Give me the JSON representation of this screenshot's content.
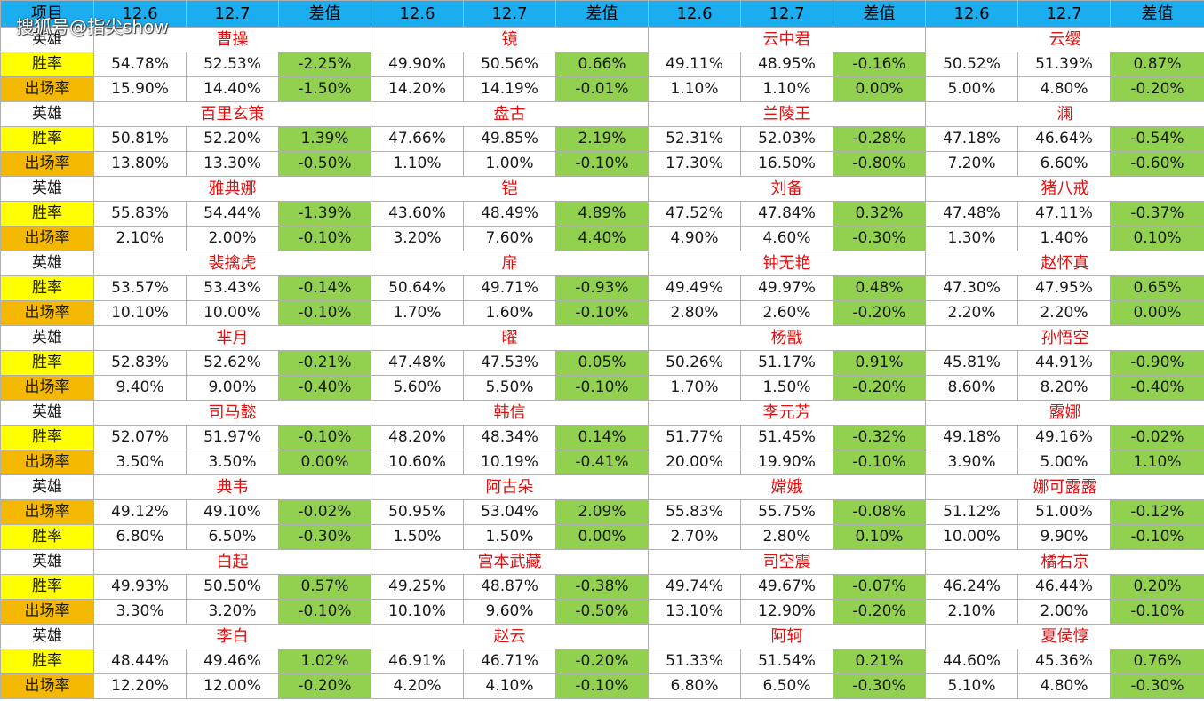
{
  "watermark": "搜狐号@指尖show",
  "header": {
    "corner": "项目",
    "cols": [
      "12.6",
      "12.7",
      "差值",
      "12.6",
      "12.7",
      "差值",
      "12.6",
      "12.7",
      "差值",
      "12.6",
      "12.7",
      "差值"
    ]
  },
  "labels": {
    "hero": "英雄",
    "win": "胜率",
    "appear": "出场率"
  },
  "colors": {
    "header_bg": "#1aaef0",
    "win_label_bg": "#ffff00",
    "appear_label_bg": "#f5b800",
    "diff_bg": "#92d050",
    "hero_name": "#e01010"
  },
  "groups": [
    {
      "heroes": [
        "曹操",
        "镜",
        "云中君",
        "云缨"
      ],
      "rows": [
        {
          "label": "胜率",
          "type": "win",
          "values": [
            "54.78%",
            "52.53%",
            "-2.25%",
            "49.90%",
            "50.56%",
            "0.66%",
            "49.11%",
            "48.95%",
            "-0.16%",
            "50.52%",
            "51.39%",
            "0.87%"
          ]
        },
        {
          "label": "出场率",
          "type": "app",
          "values": [
            "15.90%",
            "14.40%",
            "-1.50%",
            "14.20%",
            "14.19%",
            "-0.01%",
            "1.10%",
            "1.10%",
            "0.00%",
            "5.00%",
            "4.80%",
            "-0.20%"
          ]
        }
      ]
    },
    {
      "heroes": [
        "百里玄策",
        "盘古",
        "兰陵王",
        "澜"
      ],
      "rows": [
        {
          "label": "胜率",
          "type": "win",
          "values": [
            "50.81%",
            "52.20%",
            "1.39%",
            "47.66%",
            "49.85%",
            "2.19%",
            "52.31%",
            "52.03%",
            "-0.28%",
            "47.18%",
            "46.64%",
            "-0.54%"
          ]
        },
        {
          "label": "出场率",
          "type": "app",
          "values": [
            "13.80%",
            "13.30%",
            "-0.50%",
            "1.10%",
            "1.00%",
            "-0.10%",
            "17.30%",
            "16.50%",
            "-0.80%",
            "7.20%",
            "6.60%",
            "-0.60%"
          ]
        }
      ]
    },
    {
      "heroes": [
        "雅典娜",
        "铠",
        "刘备",
        "猪八戒"
      ],
      "rows": [
        {
          "label": "胜率",
          "type": "win",
          "values": [
            "55.83%",
            "54.44%",
            "-1.39%",
            "43.60%",
            "48.49%",
            "4.89%",
            "47.52%",
            "47.84%",
            "0.32%",
            "47.48%",
            "47.11%",
            "-0.37%"
          ]
        },
        {
          "label": "出场率",
          "type": "app",
          "values": [
            "2.10%",
            "2.00%",
            "-0.10%",
            "3.20%",
            "7.60%",
            "4.40%",
            "4.90%",
            "4.60%",
            "-0.30%",
            "1.30%",
            "1.40%",
            "0.10%"
          ]
        }
      ]
    },
    {
      "heroes": [
        "裴擒虎",
        "扉",
        "钟无艳",
        "赵怀真"
      ],
      "rows": [
        {
          "label": "胜率",
          "type": "win",
          "values": [
            "53.57%",
            "53.43%",
            "-0.14%",
            "50.64%",
            "49.71%",
            "-0.93%",
            "49.49%",
            "49.97%",
            "0.48%",
            "47.30%",
            "47.95%",
            "0.65%"
          ]
        },
        {
          "label": "出场率",
          "type": "app",
          "values": [
            "10.10%",
            "10.00%",
            "-0.10%",
            "1.70%",
            "1.60%",
            "-0.10%",
            "2.80%",
            "2.60%",
            "-0.20%",
            "2.20%",
            "2.20%",
            "0.00%"
          ]
        }
      ]
    },
    {
      "heroes": [
        "芈月",
        "曜",
        "杨戬",
        "孙悟空"
      ],
      "rows": [
        {
          "label": "胜率",
          "type": "win",
          "values": [
            "52.83%",
            "52.62%",
            "-0.21%",
            "47.48%",
            "47.53%",
            "0.05%",
            "50.26%",
            "51.17%",
            "0.91%",
            "45.81%",
            "44.91%",
            "-0.90%"
          ]
        },
        {
          "label": "出场率",
          "type": "app",
          "values": [
            "9.40%",
            "9.00%",
            "-0.40%",
            "5.60%",
            "5.50%",
            "-0.10%",
            "1.70%",
            "1.50%",
            "-0.20%",
            "8.60%",
            "8.20%",
            "-0.40%"
          ]
        }
      ]
    },
    {
      "heroes": [
        "司马懿",
        "韩信",
        "李元芳",
        "露娜"
      ],
      "rows": [
        {
          "label": "胜率",
          "type": "win",
          "values": [
            "52.07%",
            "51.97%",
            "-0.10%",
            "48.20%",
            "48.34%",
            "0.14%",
            "51.77%",
            "51.45%",
            "-0.32%",
            "49.18%",
            "49.16%",
            "-0.02%"
          ]
        },
        {
          "label": "出场率",
          "type": "app",
          "values": [
            "3.50%",
            "3.50%",
            "0.00%",
            "10.60%",
            "10.19%",
            "-0.41%",
            "20.00%",
            "19.90%",
            "-0.10%",
            "3.90%",
            "5.00%",
            "1.10%"
          ]
        }
      ]
    },
    {
      "heroes": [
        "典韦",
        "阿古朵",
        "嫦娥",
        "娜可露露"
      ],
      "rows": [
        {
          "label": "出场率",
          "type": "app",
          "values": [
            "49.12%",
            "49.10%",
            "-0.02%",
            "50.95%",
            "53.04%",
            "2.09%",
            "55.83%",
            "55.75%",
            "-0.08%",
            "51.12%",
            "51.00%",
            "-0.12%"
          ]
        },
        {
          "label": "胜率",
          "type": "win",
          "values": [
            "6.80%",
            "6.50%",
            "-0.30%",
            "1.50%",
            "1.50%",
            "0.00%",
            "2.70%",
            "2.80%",
            "0.10%",
            "10.00%",
            "9.90%",
            "-0.10%"
          ]
        }
      ]
    },
    {
      "heroes": [
        "白起",
        "宫本武藏",
        "司空震",
        "橘右京"
      ],
      "rows": [
        {
          "label": "胜率",
          "type": "win",
          "values": [
            "49.93%",
            "50.50%",
            "0.57%",
            "49.25%",
            "48.87%",
            "-0.38%",
            "49.74%",
            "49.67%",
            "-0.07%",
            "46.24%",
            "46.44%",
            "0.20%"
          ]
        },
        {
          "label": "出场率",
          "type": "app",
          "values": [
            "3.30%",
            "3.20%",
            "-0.10%",
            "10.10%",
            "9.60%",
            "-0.50%",
            "13.10%",
            "12.90%",
            "-0.20%",
            "2.10%",
            "2.00%",
            "-0.10%"
          ]
        }
      ]
    },
    {
      "heroes": [
        "李白",
        "赵云",
        "阿轲",
        "夏侯惇"
      ],
      "rows": [
        {
          "label": "胜率",
          "type": "win",
          "values": [
            "48.44%",
            "49.46%",
            "1.02%",
            "46.91%",
            "46.71%",
            "-0.20%",
            "51.33%",
            "51.54%",
            "0.21%",
            "44.60%",
            "45.36%",
            "0.76%"
          ]
        },
        {
          "label": "出场率",
          "type": "app",
          "values": [
            "12.20%",
            "12.00%",
            "-0.20%",
            "4.20%",
            "4.10%",
            "-0.10%",
            "6.80%",
            "6.50%",
            "-0.30%",
            "5.10%",
            "4.80%",
            "-0.30%"
          ]
        }
      ]
    }
  ]
}
